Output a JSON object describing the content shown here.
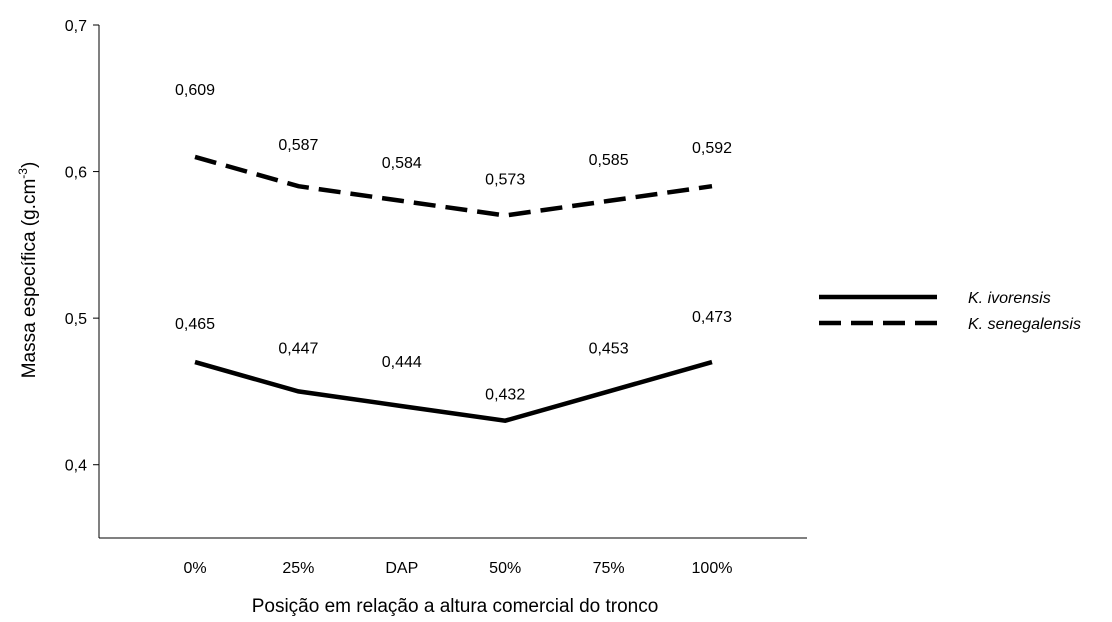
{
  "chart_data": {
    "type": "line",
    "categories": [
      "0%",
      "25%",
      "DAP",
      "50%",
      "75%",
      "100%"
    ],
    "series": [
      {
        "name": "K. ivorensis",
        "values": [
          0.47,
          0.45,
          0.44,
          0.43,
          0.45,
          0.47
        ],
        "labels": [
          "0,465",
          "0,447",
          "0,444",
          "0,432",
          "0,453",
          "0,473"
        ],
        "style": "solid",
        "color": "#000000"
      },
      {
        "name": "K. senegalensis",
        "values": [
          0.61,
          0.59,
          0.58,
          0.57,
          0.58,
          0.59
        ],
        "labels": [
          "0,609",
          "0,587",
          "0,584",
          "0,573",
          "0,585",
          "0,592"
        ],
        "style": "dashed",
        "color": "#000000"
      }
    ],
    "xlabel": "Posição em relação a altura comercial do tronco",
    "ylabel": "Massa específica (g.cm",
    "ylabel_superscript": "-3",
    "ylabel_suffix": ")",
    "ylim": [
      0.35,
      0.7
    ],
    "yticks": [
      0.4,
      0.5,
      0.6,
      0.7
    ],
    "ytick_labels": [
      "0,4",
      "0,5",
      "0,6",
      "0,7"
    ],
    "grid": false,
    "legend_position": "right"
  }
}
